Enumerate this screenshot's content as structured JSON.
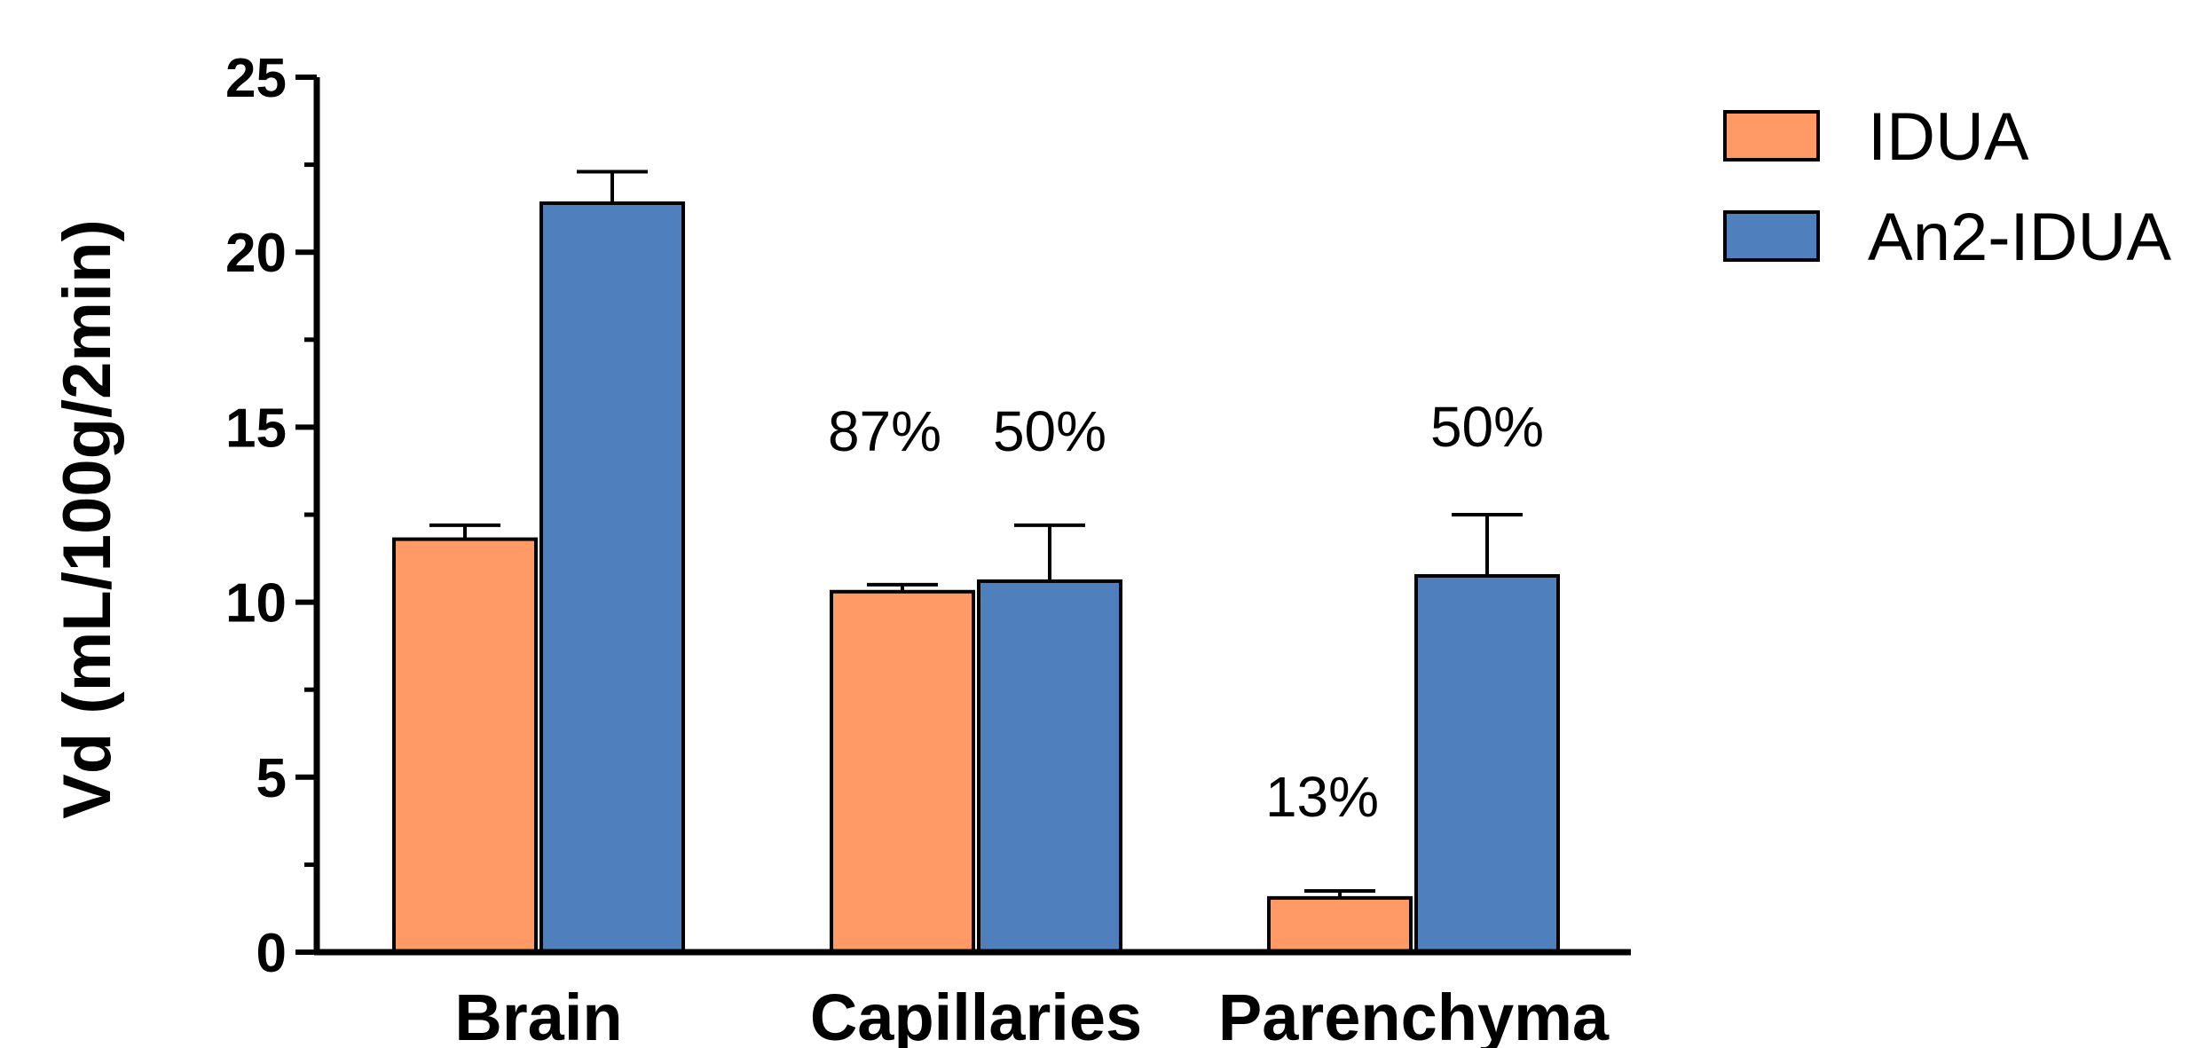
{
  "chart_data": {
    "type": "bar",
    "ylabel": "Vd (mL/100g/2min)",
    "ylim": [
      0,
      25
    ],
    "yticks": [
      "0",
      "5",
      "10",
      "15",
      "20",
      "25"
    ],
    "categories": [
      "Brain",
      "Capillaries",
      "Parenchyma"
    ],
    "series": [
      {
        "name": "IDUA",
        "color": "#FF9966",
        "values": [
          11.8,
          10.3,
          1.55
        ],
        "errors": [
          0.4,
          0.2,
          0.2
        ],
        "annotations": [
          "",
          "87%",
          "13%"
        ]
      },
      {
        "name": "An2-IDUA",
        "color": "#4F7FBD",
        "values": [
          21.4,
          10.6,
          10.75
        ],
        "errors": [
          0.9,
          1.6,
          1.75
        ],
        "annotations": [
          "",
          "50%",
          "50%"
        ]
      }
    ],
    "grid": false,
    "legend_position": "top-right",
    "xlabel": "",
    "title": ""
  }
}
